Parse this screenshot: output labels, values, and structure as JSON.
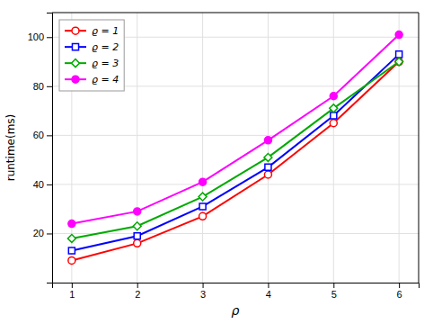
{
  "chart_data": {
    "type": "line",
    "x": [
      1,
      2,
      3,
      4,
      5,
      6
    ],
    "series": [
      {
        "name": "ϱ = 1",
        "color": "#ff0000",
        "marker": "circle-open",
        "line_style": "solid",
        "values": [
          9,
          16,
          27,
          44,
          65,
          90
        ]
      },
      {
        "name": "ϱ = 2",
        "color": "#0000ff",
        "marker": "square-open",
        "line_style": "solid",
        "values": [
          13,
          19,
          31,
          47,
          68,
          93
        ]
      },
      {
        "name": "ϱ = 3",
        "color": "#00aa00",
        "marker": "diamond-open",
        "line_style": "solid",
        "values": [
          18,
          23,
          35,
          51,
          71,
          90
        ]
      },
      {
        "name": "ϱ = 4",
        "color": "#ff00ff",
        "marker": "circle",
        "line_style": "solid",
        "values": [
          24,
          29,
          41,
          58,
          76,
          101
        ]
      }
    ],
    "xlabel": "ρ",
    "ylabel": "runtime(ms)",
    "xlim": [
      0.7,
      6.3
    ],
    "ylim": [
      0,
      110
    ],
    "xticks": [
      1,
      2,
      3,
      4,
      5,
      6
    ],
    "yticks": [
      20,
      40,
      60,
      80,
      100
    ],
    "grid": true,
    "legend": "top-left"
  }
}
